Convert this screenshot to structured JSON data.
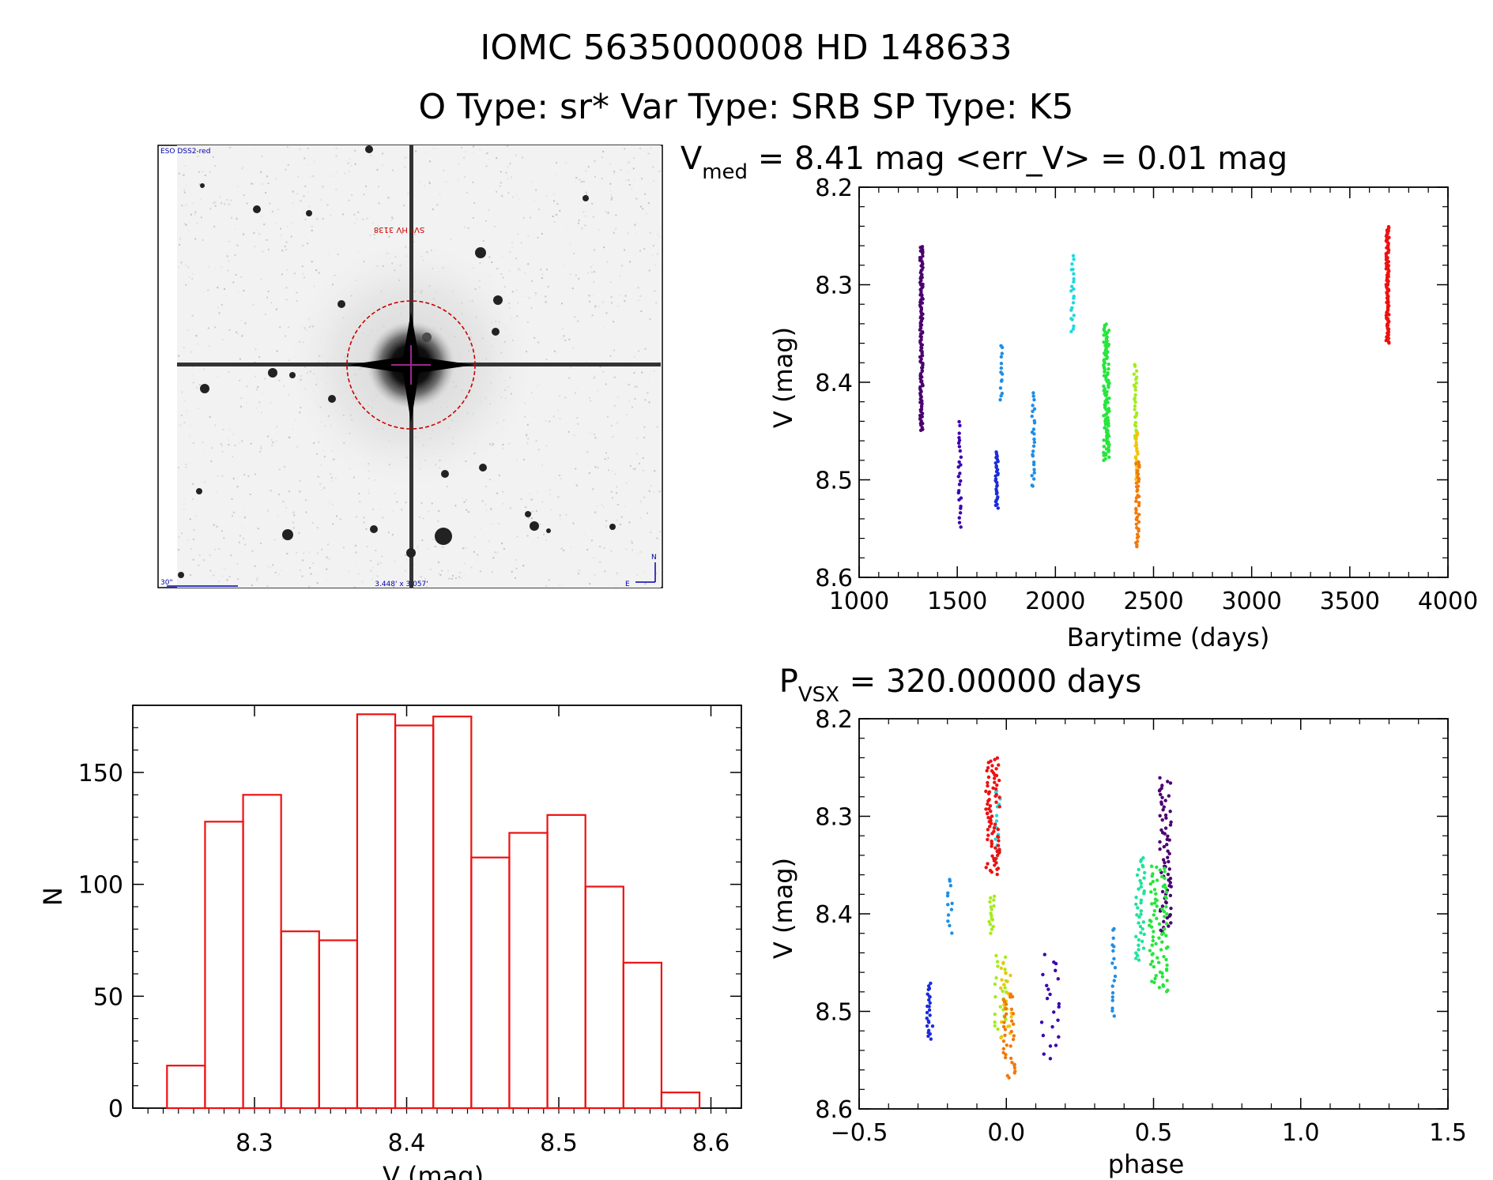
{
  "header": {
    "title": "IOMC 5635000008   HD 148633",
    "subtitle": "O Type: sr*  Var Type: SRB  SP Type: K5"
  },
  "image_panel": {
    "label_top_left": "ESO DSS2-red",
    "label_target": "SV* HV 3138",
    "label_scale": "30\"",
    "label_size": "3.448' x 3.057'",
    "label_north": "N",
    "label_east": "E",
    "circle_color": "#cc0000",
    "crosshair_color": "#9a2a8a"
  },
  "colors": {
    "hist": "#ee1111",
    "palette": [
      "#4b0070",
      "#3c00b0",
      "#1a2bdc",
      "#1f8ee6",
      "#22d8e0",
      "#1fe39a",
      "#27e53c",
      "#a4ec1c",
      "#f0c40c",
      "#f07a0c",
      "#ee1111"
    ]
  },
  "chart_data": [
    {
      "type": "scatter",
      "name": "light-curve",
      "title": "V",
      "title_sub": "med",
      "title_rest": " = 8.41 mag <err_V> = 0.01 mag",
      "xlabel": "Barytime (days)",
      "ylabel": "V (mag)",
      "xlim": [
        1000,
        4000
      ],
      "ylim": [
        8.6,
        8.2
      ],
      "xticks": [
        1000,
        1500,
        2000,
        2500,
        3000,
        3500,
        4000
      ],
      "xtick_labels": [
        "1000",
        "1500",
        "2000",
        "2500",
        "3000",
        "3500",
        "4000"
      ],
      "yticks": [
        8.2,
        8.3,
        8.4,
        8.5,
        8.6
      ],
      "ytick_labels": [
        "8.2",
        "8.3",
        "8.4",
        "8.5",
        "8.6"
      ],
      "series": [
        {
          "name": "season-1",
          "color_index": 0,
          "x": [
            1310,
            1325
          ],
          "y": [
            8.26,
            8.45
          ],
          "n": 120
        },
        {
          "name": "season-2",
          "color_index": 1,
          "x": [
            1505,
            1520
          ],
          "y": [
            8.44,
            8.55
          ],
          "n": 26
        },
        {
          "name": "season-3",
          "color_index": 2,
          "x": [
            1695,
            1708
          ],
          "y": [
            8.47,
            8.53
          ],
          "n": 30
        },
        {
          "name": "season-4",
          "color_index": 3,
          "x": [
            1718,
            1730
          ],
          "y": [
            8.36,
            8.42
          ],
          "n": 14
        },
        {
          "name": "season-5",
          "color_index": 3,
          "x": [
            1880,
            1895
          ],
          "y": [
            8.41,
            8.51
          ],
          "n": 26
        },
        {
          "name": "season-6",
          "color_index": 4,
          "x": [
            2080,
            2095
          ],
          "y": [
            8.27,
            8.35
          ],
          "n": 22
        },
        {
          "name": "season-7",
          "color_index": 6,
          "x": [
            2245,
            2275
          ],
          "y": [
            8.34,
            8.48
          ],
          "n": 110
        },
        {
          "name": "season-8",
          "color_index": 7,
          "x": [
            2400,
            2415
          ],
          "y": [
            8.38,
            8.46
          ],
          "n": 26
        },
        {
          "name": "season-9",
          "color_index": 8,
          "x": [
            2408,
            2420
          ],
          "y": [
            8.45,
            8.5
          ],
          "n": 24
        },
        {
          "name": "season-10",
          "color_index": 9,
          "x": [
            2410,
            2428
          ],
          "y": [
            8.48,
            8.57
          ],
          "n": 40
        },
        {
          "name": "season-11",
          "color_index": 10,
          "x": [
            3685,
            3700
          ],
          "y": [
            8.24,
            8.36
          ],
          "n": 100
        }
      ]
    },
    {
      "type": "bar",
      "name": "histogram",
      "xlabel": "V (mag)",
      "ylabel": "N",
      "xlim": [
        8.22,
        8.62
      ],
      "ylim": [
        0,
        180
      ],
      "bin_edges": [
        8.2425,
        8.2675,
        8.2925,
        8.3175,
        8.3425,
        8.3675,
        8.3925,
        8.4175,
        8.4425,
        8.4675,
        8.4925,
        8.5175,
        8.5425,
        8.5675,
        8.5925
      ],
      "values": [
        19,
        128,
        140,
        79,
        75,
        176,
        171,
        175,
        112,
        123,
        131,
        99,
        65,
        7
      ],
      "xticks": [
        8.3,
        8.4,
        8.5,
        8.6
      ],
      "xtick_labels": [
        "8.3",
        "8.4",
        "8.5",
        "8.6"
      ],
      "yticks": [
        0,
        50,
        100,
        150
      ],
      "ytick_labels": [
        "0",
        "50",
        "100",
        "150"
      ]
    },
    {
      "type": "scatter",
      "name": "phase-curve",
      "title": "P",
      "title_sub": "VSX",
      "title_rest": " = 320.00000 days",
      "xlabel": "phase",
      "ylabel": "V (mag)",
      "xlim": [
        -0.5,
        1.5
      ],
      "ylim": [
        8.6,
        8.2
      ],
      "xticks": [
        -0.5,
        0.0,
        0.5,
        1.0,
        1.5
      ],
      "xtick_labels": [
        "−0.5",
        "0.0",
        "0.5",
        "1.0",
        "1.5"
      ],
      "yticks": [
        8.2,
        8.3,
        8.4,
        8.5,
        8.6
      ],
      "ytick_labels": [
        "8.2",
        "8.3",
        "8.4",
        "8.5",
        "8.6"
      ],
      "series": [
        {
          "name": "phase-group-1",
          "color_index": 0,
          "x": [
            0.52,
            0.56
          ],
          "y": [
            8.26,
            8.42
          ],
          "n": 70
        },
        {
          "name": "phase-group-2",
          "color_index": 1,
          "x": [
            0.12,
            0.18
          ],
          "y": [
            8.44,
            8.55
          ],
          "n": 22
        },
        {
          "name": "phase-group-3",
          "color_index": 2,
          "x": [
            -0.27,
            -0.25
          ],
          "y": [
            8.47,
            8.53
          ],
          "n": 24
        },
        {
          "name": "phase-group-4",
          "color_index": 3,
          "x": [
            -0.2,
            -0.18
          ],
          "y": [
            8.36,
            8.42
          ],
          "n": 12
        },
        {
          "name": "phase-group-5",
          "color_index": 3,
          "x": [
            0.36,
            0.37
          ],
          "y": [
            8.41,
            8.51
          ],
          "n": 18
        },
        {
          "name": "phase-group-6",
          "color_index": 4,
          "x": [
            -0.04,
            -0.02
          ],
          "y": [
            8.27,
            8.35
          ],
          "n": 16
        },
        {
          "name": "phase-group-7",
          "color_index": 5,
          "x": [
            0.44,
            0.47
          ],
          "y": [
            8.34,
            8.45
          ],
          "n": 40
        },
        {
          "name": "phase-group-8",
          "color_index": 6,
          "x": [
            0.48,
            0.55
          ],
          "y": [
            8.35,
            8.48
          ],
          "n": 80
        },
        {
          "name": "phase-group-9",
          "color_index": 7,
          "x": [
            -0.06,
            -0.04
          ],
          "y": [
            8.38,
            8.42
          ],
          "n": 16
        },
        {
          "name": "phase-group-10",
          "color_index": 7,
          "x": [
            -0.04,
            0.0
          ],
          "y": [
            8.44,
            8.52
          ],
          "n": 24
        },
        {
          "name": "phase-group-11",
          "color_index": 8,
          "x": [
            -0.02,
            0.02
          ],
          "y": [
            8.45,
            8.53
          ],
          "n": 22
        },
        {
          "name": "phase-group-12",
          "color_index": 9,
          "x": [
            -0.01,
            0.03
          ],
          "y": [
            8.48,
            8.57
          ],
          "n": 36
        },
        {
          "name": "phase-group-13",
          "color_index": 10,
          "x": [
            -0.07,
            -0.02
          ],
          "y": [
            8.24,
            8.36
          ],
          "n": 80
        }
      ]
    }
  ]
}
